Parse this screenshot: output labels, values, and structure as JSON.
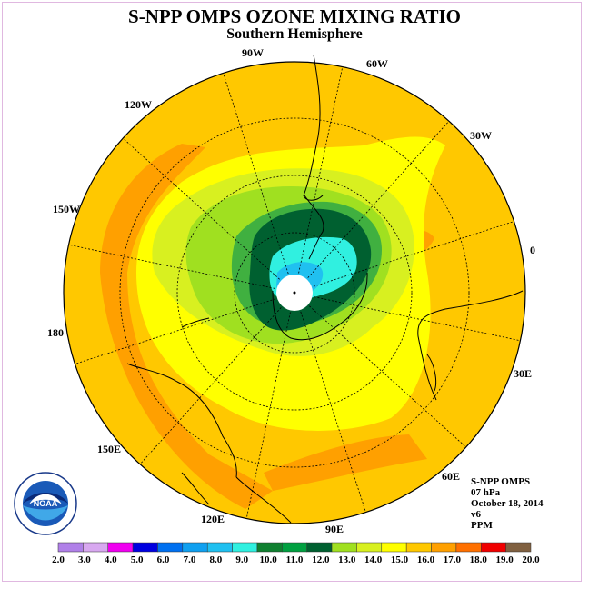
{
  "title": "S-NPP OMPS OZONE MIXING RATIO",
  "subtitle": "Southern Hemisphere",
  "longitude_labels": [
    "90W",
    "60W",
    "30W",
    "0",
    "30E",
    "60E",
    "90E",
    "120E",
    "150E",
    "180",
    "150W",
    "120W"
  ],
  "info": {
    "instrument": "S-NPP OMPS",
    "pressure": "07 hPa",
    "date": "October 18, 2014",
    "version": "v6",
    "units": "PPM"
  },
  "logo": {
    "text": "NOAA",
    "ring_text": "NATIONAL OCEANIC AND ATMOSPHERIC ADMINISTRATION · U.S. DEPARTMENT OF COMMERCE"
  },
  "colorbar": {
    "ticks": [
      "2.0",
      "3.0",
      "4.0",
      "5.0",
      "6.0",
      "7.0",
      "8.0",
      "9.0",
      "10.0",
      "11.0",
      "12.0",
      "13.0",
      "14.0",
      "15.0",
      "16.0",
      "17.0",
      "18.0",
      "19.0",
      "20.0"
    ],
    "colors": [
      "#b080e8",
      "#d8a8f0",
      "#f000f0",
      "#0000e0",
      "#0070f0",
      "#10a0f0",
      "#20c0f0",
      "#30f0e0",
      "#108030",
      "#00a040",
      "#006030",
      "#a0e020",
      "#d8f020",
      "#ffff00",
      "#ffc800",
      "#ffa000",
      "#ff7000",
      "#f00000",
      "#806040"
    ]
  }
}
